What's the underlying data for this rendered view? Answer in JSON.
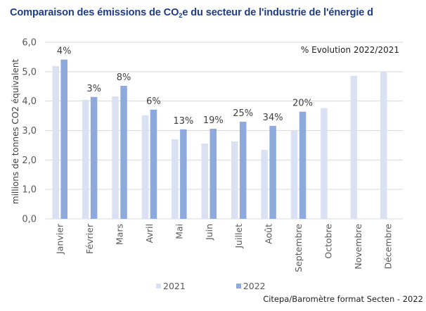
{
  "title": {
    "before": "Comparaison des émissions de CO",
    "sub": "2",
    "after": "e du secteur de l'industrie de l'énergie d"
  },
  "annotation": "% Evolution 2022/2021",
  "source": "Citepa/Baromètre format Secten - 2022",
  "colors": {
    "s2021": "#D9E1F2",
    "s2022": "#8EA9DB",
    "grid": "#D9D9D9",
    "title": "#1F3C88"
  },
  "chart_data": {
    "type": "bar",
    "title": "Comparaison des émissions de CO2e du secteur de l'industrie de l'énergie",
    "xlabel": "",
    "ylabel": "millions de tonnes CO2 équivalent",
    "ylim": [
      0,
      6
    ],
    "yticks": [
      "0,0",
      "1,0",
      "2,0",
      "3,0",
      "4,0",
      "5,0",
      "6,0"
    ],
    "grid": true,
    "legend_position": "bottom",
    "categories": [
      "Janvier",
      "Février",
      "Mars",
      "Avril",
      "Mai",
      "Juin",
      "Juillet",
      "Août",
      "Septembre",
      "Octobre",
      "Novembre",
      "Décembre"
    ],
    "series": [
      {
        "name": "2021",
        "values": [
          5.19,
          4.04,
          4.16,
          3.52,
          2.7,
          2.56,
          2.63,
          2.34,
          3.01,
          3.76,
          4.86,
          5.0
        ]
      },
      {
        "name": "2022",
        "values": [
          5.41,
          4.14,
          4.52,
          3.71,
          3.04,
          3.06,
          3.3,
          3.16,
          3.64,
          null,
          null,
          null
        ]
      }
    ],
    "data_labels": [
      "4%",
      "3%",
      "8%",
      "6%",
      "13%",
      "19%",
      "25%",
      "34%",
      "20%",
      null,
      null,
      null
    ],
    "annotations": [
      "% Evolution 2022/2021"
    ]
  }
}
